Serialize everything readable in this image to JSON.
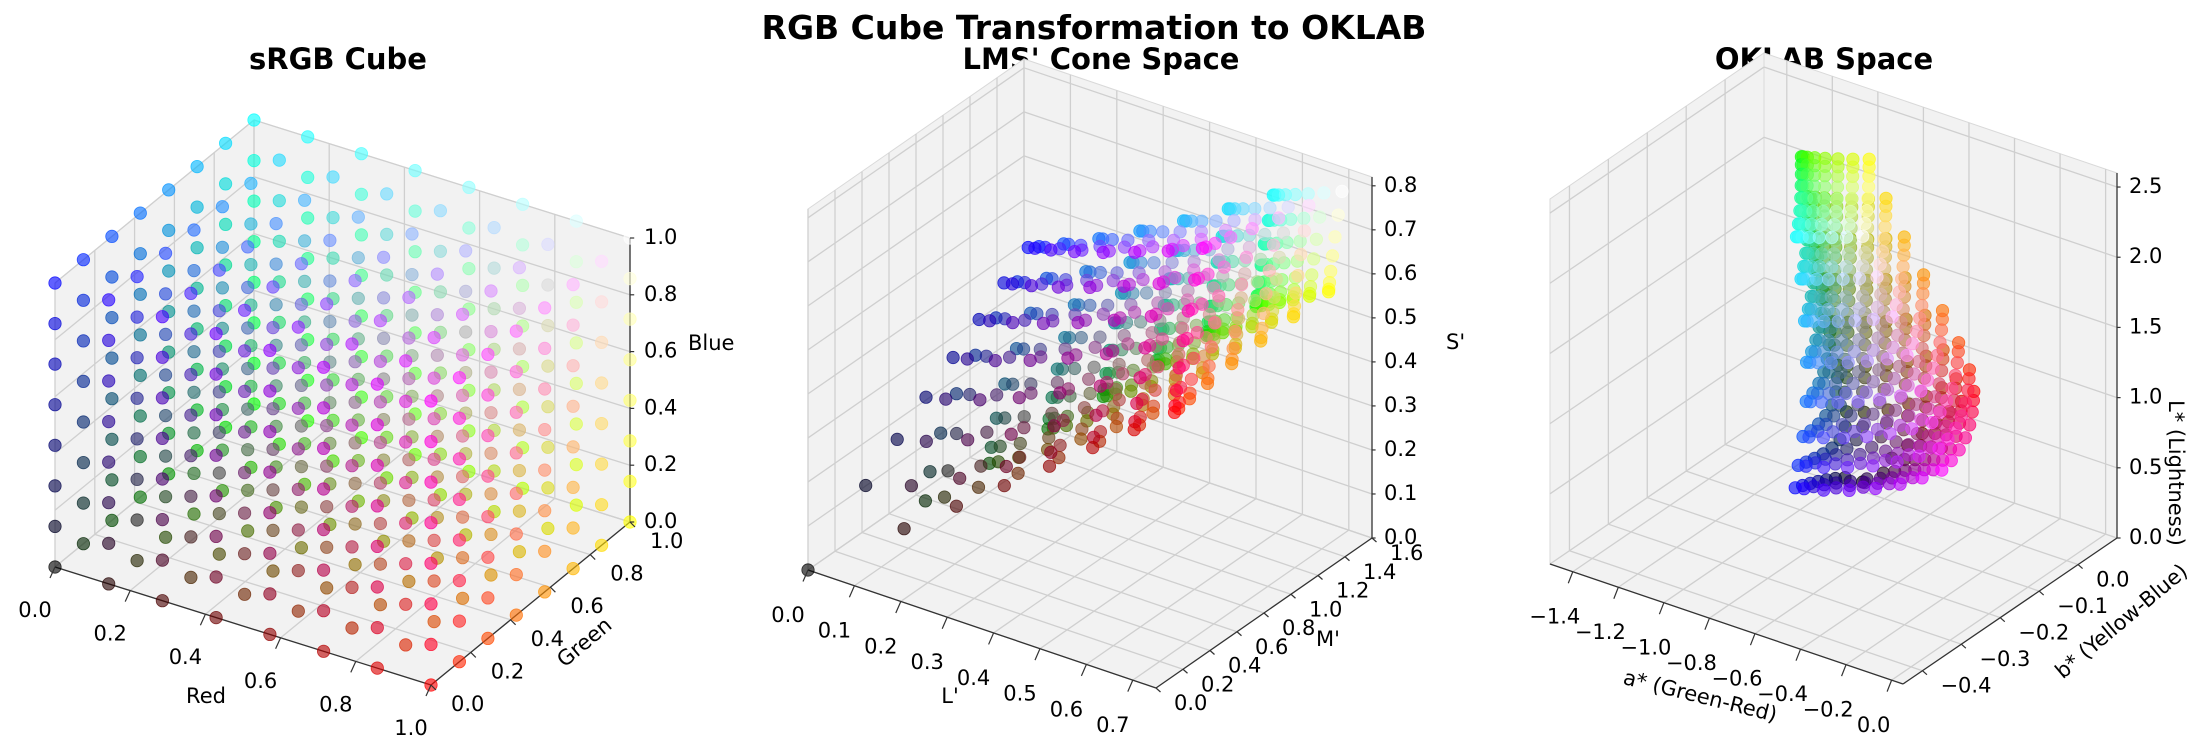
{
  "figure": {
    "title": "RGB Cube Transformation to OKLAB"
  },
  "chart_data": [
    {
      "type": "scatter",
      "projection": "3d",
      "title": "sRGB Cube",
      "xlabel": "Red",
      "ylabel": "Green",
      "zlabel": "Blue",
      "xlim": [
        0,
        1
      ],
      "ylim": [
        0,
        1
      ],
      "zlim": [
        0,
        1
      ],
      "xticks": [
        "0.0",
        "0.2",
        "0.4",
        "0.6",
        "0.8",
        "1.0"
      ],
      "yticks": [
        "0.0",
        "0.2",
        "0.4",
        "0.6",
        "0.8",
        "1.0"
      ],
      "zticks": [
        "0.0",
        "0.2",
        "0.4",
        "0.6",
        "0.8",
        "1.0"
      ],
      "grid": true,
      "point_color": "rgb of point",
      "grid_steps": 8
    },
    {
      "type": "scatter",
      "projection": "3d",
      "title": "LMS' Cone Space",
      "xlabel": "L'",
      "ylabel": "M'",
      "zlabel": "S'",
      "xlim": [
        0,
        0.75
      ],
      "ylim": [
        0,
        1.6
      ],
      "zlim": [
        0,
        0.82
      ],
      "xticks": [
        "0.0",
        "0.1",
        "0.2",
        "0.3",
        "0.4",
        "0.5",
        "0.6",
        "0.7"
      ],
      "yticks": [
        "0.0",
        "0.2",
        "0.4",
        "0.6",
        "0.8",
        "1.0",
        "1.2",
        "1.4",
        "1.6"
      ],
      "zticks": [
        "0.0",
        "0.1",
        "0.2",
        "0.3",
        "0.4",
        "0.5",
        "0.6",
        "0.7",
        "0.8"
      ],
      "grid": true,
      "grid_steps": 8
    },
    {
      "type": "scatter",
      "projection": "3d",
      "title": "OKLAB Space",
      "xlabel": "a* (Green-Red)",
      "ylabel": "b* (Yellow-Blue)",
      "zlabel": "L* (Lightness)",
      "xlim": [
        -1.5,
        0.05
      ],
      "ylim": [
        -0.45,
        0.1
      ],
      "zlim": [
        0,
        2.6
      ],
      "xticks": [
        "−1.4",
        "−1.2",
        "−1.0",
        "−0.8",
        "−0.6",
        "−0.4",
        "−0.2",
        "0.0"
      ],
      "yticks": [
        "−0.4",
        "−0.3",
        "−0.2",
        "−0.1",
        "0.0"
      ],
      "zticks": [
        "0.0",
        "0.5",
        "1.0",
        "1.5",
        "2.0",
        "2.5"
      ],
      "grid": true,
      "grid_steps": 8
    }
  ]
}
